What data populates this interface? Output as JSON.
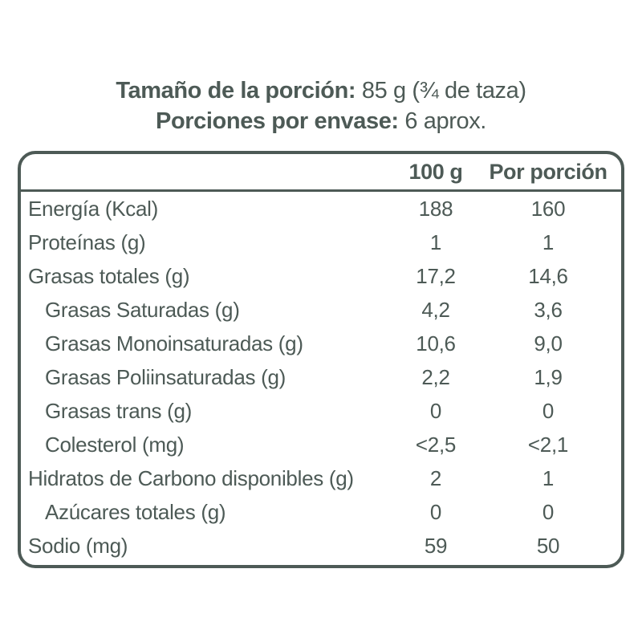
{
  "colors": {
    "text": "#4d5a56",
    "border": "#4d5a56",
    "background": "#ffffff"
  },
  "header": {
    "serving_size_label": "Tamaño de la porción:",
    "serving_size_value": "85 g (¾ de taza)",
    "servings_per_pack_label": "Porciones por envase:",
    "servings_per_pack_value": "6 aprox."
  },
  "table": {
    "columns": [
      "100 g",
      "Por porción"
    ],
    "rows": [
      {
        "label": "Energía (Kcal)",
        "indent": false,
        "per_100g": "188",
        "per_portion": "160"
      },
      {
        "label": "Proteínas (g)",
        "indent": false,
        "per_100g": "1",
        "per_portion": "1"
      },
      {
        "label": "Grasas totales (g)",
        "indent": false,
        "per_100g": "17,2",
        "per_portion": "14,6"
      },
      {
        "label": "Grasas Saturadas (g)",
        "indent": true,
        "per_100g": "4,2",
        "per_portion": "3,6"
      },
      {
        "label": "Grasas Monoinsaturadas (g)",
        "indent": true,
        "per_100g": "10,6",
        "per_portion": "9,0"
      },
      {
        "label": "Grasas Poliinsaturadas (g)",
        "indent": true,
        "per_100g": "2,2",
        "per_portion": "1,9"
      },
      {
        "label": "Grasas trans (g)",
        "indent": true,
        "per_100g": "0",
        "per_portion": "0"
      },
      {
        "label": "Colesterol (mg)",
        "indent": true,
        "per_100g": "<2,5",
        "per_portion": "<2,1"
      },
      {
        "label": "Hidratos de Carbono disponibles (g)",
        "indent": false,
        "per_100g": "2",
        "per_portion": "1"
      },
      {
        "label": "Azúcares totales (g)",
        "indent": true,
        "per_100g": "0",
        "per_portion": "0"
      },
      {
        "label": "Sodio (mg)",
        "indent": false,
        "per_100g": "59",
        "per_portion": "50"
      }
    ]
  }
}
